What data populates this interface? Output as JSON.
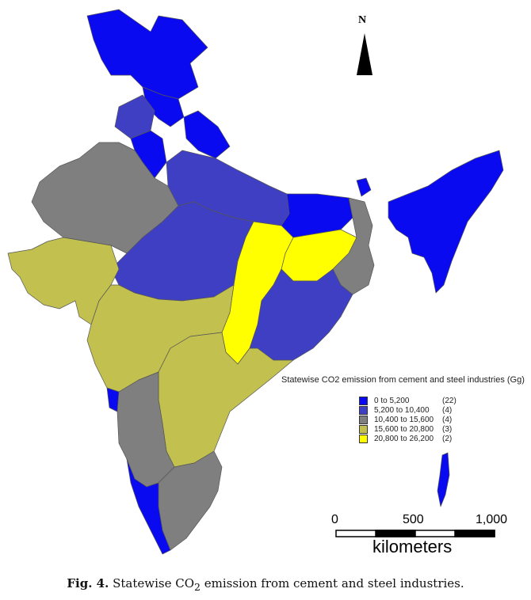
{
  "north_arrow": {
    "label": "N"
  },
  "legend": {
    "title": "Statewise CO2 emission from cement and steel industries (Gg)",
    "items": [
      {
        "range": "0 to  5,200",
        "count": "(22)",
        "color": "#0a0af0"
      },
      {
        "range": "5,200 to 10,400",
        "count": "(4)",
        "color": "#3f3fc4"
      },
      {
        "range": "10,400 to 15,600",
        "count": "(4)",
        "color": "#7f7f7f"
      },
      {
        "range": "15,600 to 20,800",
        "count": "(3)",
        "color": "#c2c04f"
      },
      {
        "range": "20,800 to 26,200",
        "count": "(2)",
        "color": "#ffff00"
      }
    ]
  },
  "scale_bar": {
    "ticks": [
      "0",
      "500",
      "1,000"
    ],
    "unit": "kilometers"
  },
  "caption": {
    "label": "Fig. 4.",
    "text_before": "Statewise CO",
    "subscript": "2",
    "text_after": " emission from cement and steel industries."
  }
}
